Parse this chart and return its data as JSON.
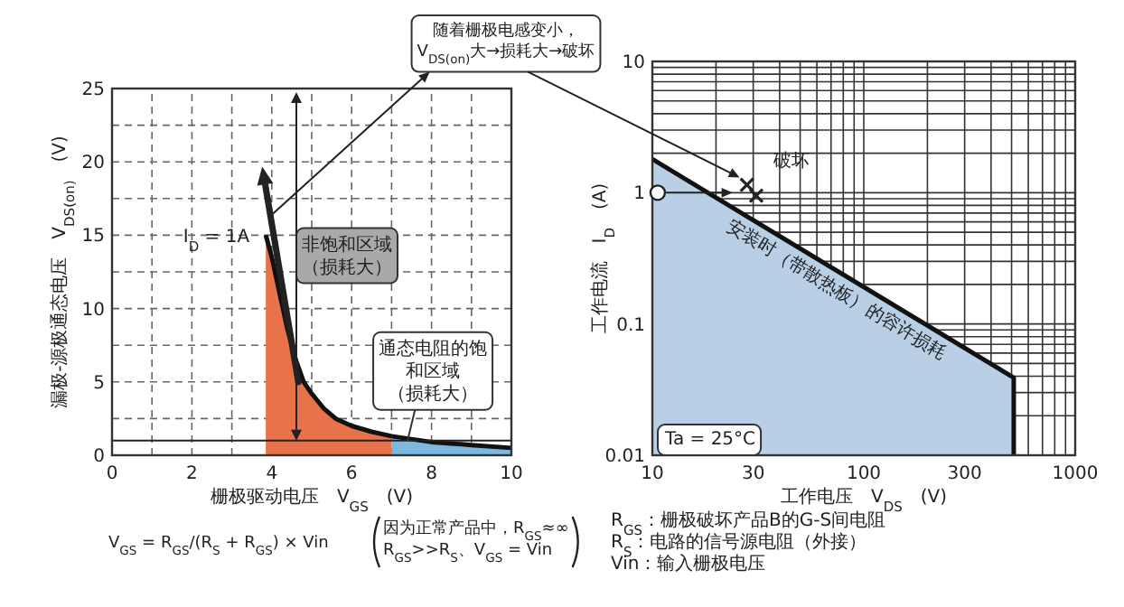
{
  "chart_data": [
    {
      "type": "area",
      "xlabel": "栅极驱动电压　V$_{GS}$　(V)",
      "ylabel": "漏极-源极通态电压　V$_{DS(on)}$　(V)",
      "xlim": [
        0,
        10
      ],
      "ylim": [
        0,
        25
      ],
      "xticks": [
        0,
        {
          "value": 1,
          "label": null
        },
        2,
        {
          "value": 3,
          "label": null
        },
        4,
        {
          "value": 5,
          "label": null
        },
        6,
        {
          "value": 7,
          "label": null
        },
        8,
        {
          "value": 9,
          "label": null
        },
        10
      ],
      "yticks": [
        0,
        {
          "value": 2.5,
          "label": null
        },
        5,
        {
          "value": 7.5,
          "label": null
        },
        10,
        {
          "value": 12.5,
          "label": null
        },
        15,
        {
          "value": 17.5,
          "label": null
        },
        20,
        {
          "value": 22.5,
          "label": null
        },
        25
      ],
      "grid": true,
      "series": [
        {
          "color": "#e8734a",
          "x": [
            3.85,
            4.0,
            4.2,
            4.4,
            4.6,
            4.8,
            5.0,
            5.3,
            5.6,
            6.0,
            6.5,
            7.0
          ],
          "values": [
            15,
            13.5,
            11,
            8.5,
            6.5,
            5,
            4.2,
            3.2,
            2.5,
            2.0,
            1.6,
            1.3
          ]
        },
        {
          "color": "#7cb8e0",
          "x": [
            7.0,
            8.0,
            9.0,
            10.0
          ],
          "values": [
            1.3,
            0.9,
            0.7,
            0.5
          ]
        }
      ],
      "ref_lines": [
        {
          "axis": "y",
          "value": 1,
          "color": "#222222"
        }
      ],
      "annotations": [
        {
          "text": "I$_{D}$ = 1A",
          "x": 3.85,
          "y": 15
        },
        "非饱和区域（损耗大）",
        {
          "text": "通态电阻的饱和区域（损耗大）",
          "x": 7.4,
          "y": 1
        },
        "随着栅极电感变小，\nV$_{DS(on)}$大→损耗大→破坏",
        "V$_{GS}$ = R$_{GS}$/(R$_{S}$ + R$_{GS}$) × Vin",
        "因为正常产品中，R$_{GS}$≈∞\nR$_{GS}$>>R$_{S}$、V$_{GS}$ = Vin"
      ]
    },
    {
      "type": "area",
      "xlabel": "工作电压　V$_{DS}$　(V)",
      "ylabel": "工作电流　I$_{D}$　(A)",
      "log": "xy",
      "xlim": [
        10,
        1000
      ],
      "ylim": [
        0.01,
        10
      ],
      "xticks": [
        10,
        {
          "value": 20,
          "label": null
        },
        30,
        {
          "value": 40,
          "label": null
        },
        {
          "value": 50,
          "label": null
        },
        {
          "value": 60,
          "label": null
        },
        {
          "value": 70,
          "label": null
        },
        {
          "value": 80,
          "label": null
        },
        {
          "value": 90,
          "label": null
        },
        100,
        {
          "value": 200,
          "label": null
        },
        300,
        {
          "value": 400,
          "label": null
        },
        {
          "value": 500,
          "label": null
        },
        {
          "value": 600,
          "label": null
        },
        {
          "value": 700,
          "label": null
        },
        {
          "value": 800,
          "label": null
        },
        {
          "value": 900,
          "label": null
        },
        1000
      ],
      "yticks": [
        0.01,
        {
          "value": 0.02,
          "label": null
        },
        {
          "value": 0.03,
          "label": null
        },
        {
          "value": 0.04,
          "label": null
        },
        {
          "value": 0.05,
          "label": null
        },
        {
          "value": 0.06,
          "label": null
        },
        {
          "value": 0.07,
          "label": null
        },
        {
          "value": 0.08,
          "label": null
        },
        {
          "value": 0.09,
          "label": null
        },
        0.1,
        {
          "value": 0.2,
          "label": null
        },
        {
          "value": 0.3,
          "label": null
        },
        {
          "value": 0.4,
          "label": null
        },
        {
          "value": 0.5,
          "label": null
        },
        {
          "value": 0.6,
          "label": null
        },
        {
          "value": 0.7,
          "label": null
        },
        {
          "value": 0.8,
          "label": null
        },
        {
          "value": 0.9,
          "label": null
        },
        1,
        {
          "value": 2,
          "label": null
        },
        {
          "value": 3,
          "label": null
        },
        {
          "value": 4,
          "label": null
        },
        {
          "value": 5,
          "label": null
        },
        {
          "value": 6,
          "label": null
        },
        {
          "value": 7,
          "label": null
        },
        {
          "value": 8,
          "label": null
        },
        {
          "value": 9,
          "label": null
        },
        10
      ],
      "grid": true,
      "series": [
        {
          "color": "#b8cfe6",
          "x": [
            10,
            512
          ],
          "values": [
            1.8,
            0.039
          ]
        },
        {
          "type": "scatter",
          "marker": "circle",
          "color": "#ffffff",
          "x": [
            10.6
          ],
          "values": [
            1
          ]
        },
        {
          "type": "scatter",
          "marker": "cross",
          "color": "#222222",
          "x": [
            28,
            31
          ],
          "values": [
            1.15,
            0.95
          ]
        }
      ],
      "annotations": [
        "破坏",
        "安装时（带散热板）的容许损耗",
        "Ta = 25°C",
        "R$_{GS}$：栅极破坏产品B的G-S间电阻",
        "R$_{S}$：电路的信号源电阻（外接）",
        "Vin：输入栅极电压"
      ]
    }
  ]
}
